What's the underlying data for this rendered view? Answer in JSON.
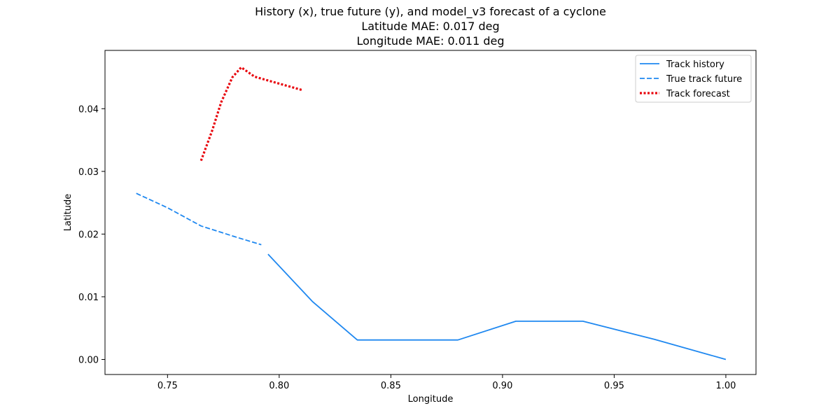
{
  "chart_data": {
    "type": "line",
    "title_lines": [
      "History (x), true future (y), and model_v3 forecast of a cyclone",
      "Latitude MAE: 0.017 deg",
      "Longitude MAE: 0.011 deg"
    ],
    "xlabel": "Longitude",
    "ylabel": "Latitude",
    "xlim": [
      0.722,
      1.0135
    ],
    "ylim": [
      -0.0024,
      0.0493
    ],
    "x_ticks": [
      0.75,
      0.8,
      0.85,
      0.9,
      0.95,
      1.0
    ],
    "x_tick_labels": [
      "0.75",
      "0.80",
      "0.85",
      "0.90",
      "0.95",
      "1.00"
    ],
    "y_ticks": [
      0.0,
      0.01,
      0.02,
      0.03,
      0.04
    ],
    "y_tick_labels": [
      "0.00",
      "0.01",
      "0.02",
      "0.03",
      "0.04"
    ],
    "grid": false,
    "legend_position": "top-right",
    "series": [
      {
        "name": "Track history",
        "style": "solid",
        "color": "#1f88f0",
        "points": [
          [
            0.795,
            0.0168
          ],
          [
            0.815,
            0.0092
          ],
          [
            0.835,
            0.0031
          ],
          [
            0.88,
            0.0031
          ],
          [
            0.906,
            0.0061
          ],
          [
            0.936,
            0.0061
          ],
          [
            0.968,
            0.0032
          ],
          [
            1.0,
            0.0
          ]
        ]
      },
      {
        "name": "True track future",
        "style": "dashed",
        "color": "#1f88f0",
        "points": [
          [
            0.736,
            0.0265
          ],
          [
            0.75,
            0.0242
          ],
          [
            0.765,
            0.0213
          ],
          [
            0.78,
            0.0196
          ],
          [
            0.792,
            0.0183
          ]
        ]
      },
      {
        "name": "Track forecast",
        "style": "dotted",
        "color": "#e8060d",
        "points": [
          [
            0.765,
            0.0317
          ],
          [
            0.77,
            0.0365
          ],
          [
            0.774,
            0.041
          ],
          [
            0.779,
            0.045
          ],
          [
            0.783,
            0.0466
          ],
          [
            0.789,
            0.0451
          ],
          [
            0.797,
            0.0443
          ],
          [
            0.81,
            0.043
          ]
        ]
      }
    ]
  }
}
